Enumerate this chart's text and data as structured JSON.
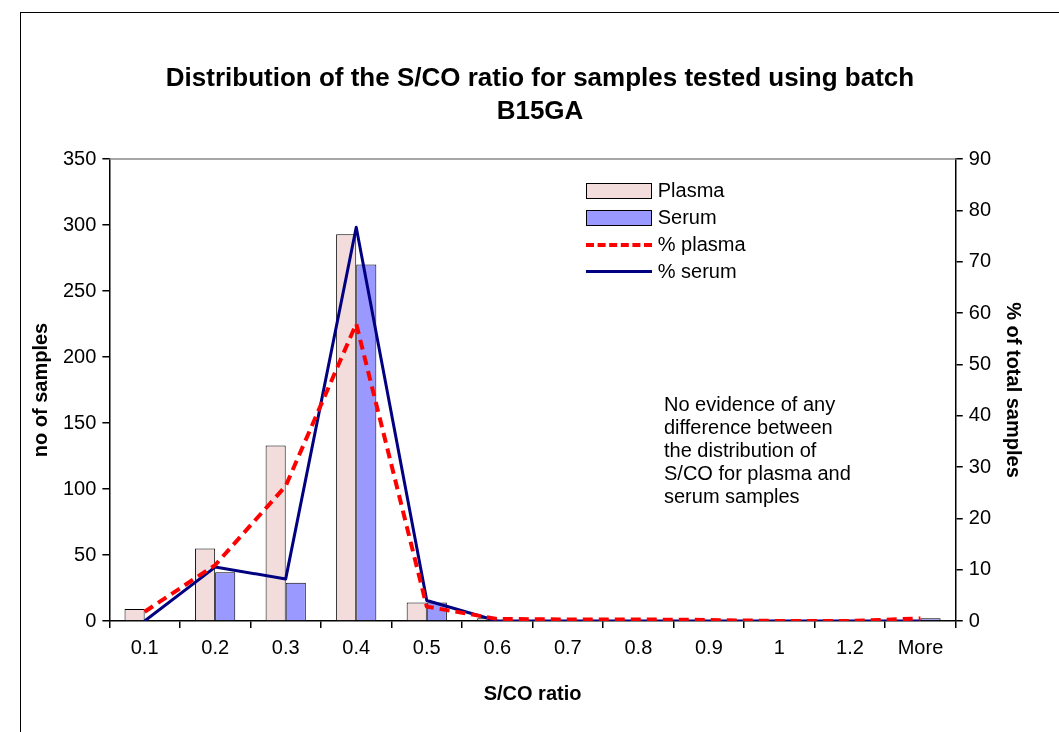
{
  "chart_data": {
    "type": "bar",
    "title": "Distribution of the S/CO ratio for samples tested using batch B15GA",
    "xlabel": "S/CO ratio",
    "ylabel": "no of samples",
    "y2label": "% of total samples",
    "categories": [
      "0.1",
      "0.2",
      "0.3",
      "0.4",
      "0.5",
      "0.6",
      "0.7",
      "0.8",
      "0.9",
      "1",
      "1.2",
      "More"
    ],
    "series": [
      {
        "name": "Plasma",
        "color": "#f2dcdc",
        "values": [
          9,
          55,
          133,
          293,
          14,
          2,
          0,
          0,
          0,
          0,
          0,
          0
        ]
      },
      {
        "name": "Serum",
        "color": "#9999ff",
        "values": [
          0,
          37,
          29,
          270,
          14,
          0,
          0,
          0,
          0,
          0,
          0,
          2
        ]
      },
      {
        "name": "% plasma",
        "type": "line",
        "axis": "y2",
        "color": "#ff0000",
        "line_style": "dashed",
        "values": [
          1.8,
          10.9,
          26.3,
          57.9,
          2.8,
          0.4,
          0.3,
          0.3,
          0.2,
          0,
          0,
          0.5
        ]
      },
      {
        "name": "% serum",
        "type": "line",
        "axis": "y2",
        "color": "#000080",
        "line_style": "solid",
        "values": [
          0,
          10.5,
          8.2,
          76.7,
          4,
          0,
          0,
          0,
          0,
          0,
          0,
          0
        ]
      }
    ],
    "ylim": [
      0,
      350
    ],
    "yticks": [
      0,
      50,
      100,
      150,
      200,
      250,
      300,
      350
    ],
    "y2lim": [
      0,
      90
    ],
    "y2ticks": [
      0,
      10,
      20,
      30,
      40,
      50,
      60,
      70,
      80,
      90
    ],
    "grid": false,
    "legend": "top right",
    "marker": "none",
    "annotations": [
      "No evidence of any difference between the distribution of S/CO for plasma and serum samples"
    ]
  }
}
